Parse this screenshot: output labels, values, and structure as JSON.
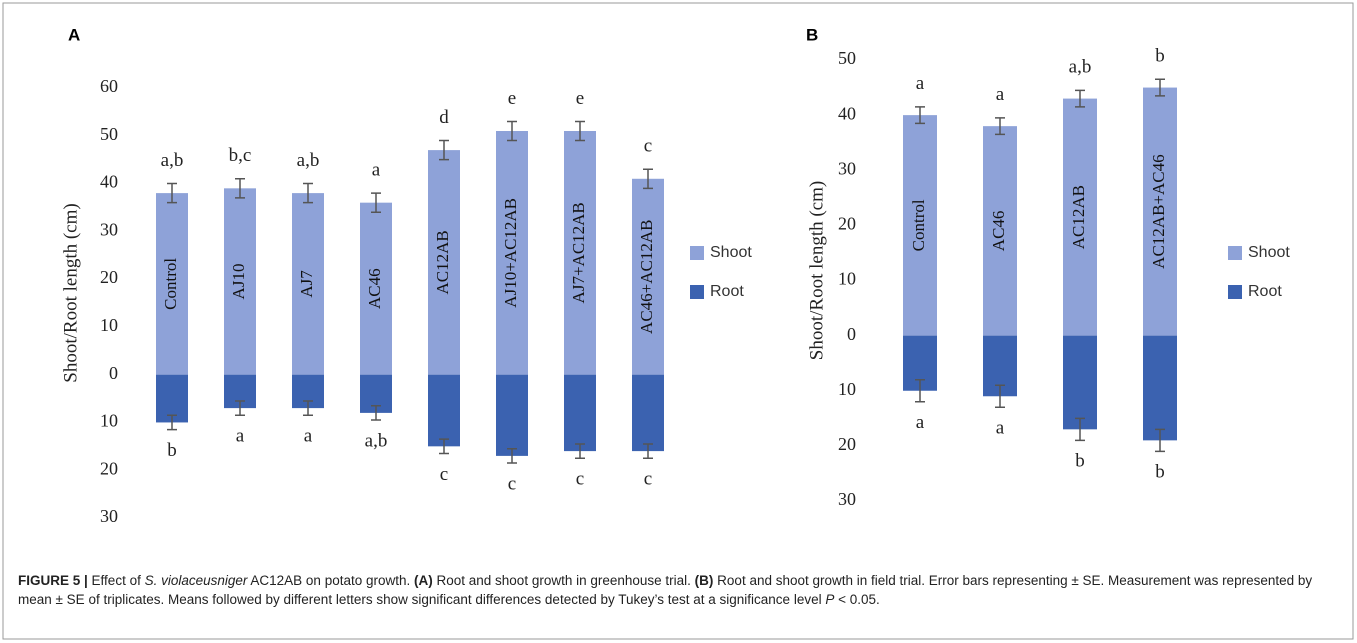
{
  "chart_data": [
    {
      "type": "bar",
      "stacked": true,
      "panel_label": "A",
      "ylabel": "Shoot/Root length (cm)",
      "categories": [
        "Control",
        "AJ10",
        "AJ7",
        "AC46",
        "AC12AB",
        "AJ10+AC12AB",
        "AJ7+AC12AB",
        "AC46+AC12AB"
      ],
      "series": [
        {
          "name": "Shoot",
          "color": "#8ea2d8",
          "values": [
            38,
            39,
            38,
            36,
            47,
            51,
            51,
            41
          ],
          "errors": [
            2,
            2,
            2,
            2,
            2,
            2,
            2,
            2
          ],
          "letters": [
            "a,b",
            "b,c",
            "a,b",
            "a",
            "d",
            "e",
            "e",
            "c"
          ]
        },
        {
          "name": "Root",
          "color": "#3b62b0",
          "values": [
            -10,
            -7,
            -7,
            -8,
            -15,
            -17,
            -16,
            -16
          ],
          "errors": [
            1.5,
            1.5,
            1.5,
            1.5,
            1.5,
            1.5,
            1.5,
            1.5
          ],
          "letters": [
            "b",
            "a",
            "a",
            "a,b",
            "c",
            "c",
            "c",
            "c"
          ]
        }
      ],
      "ylim": [
        -30,
        60
      ],
      "yticks": [
        {
          "value": -30,
          "label": "30"
        },
        {
          "value": -20,
          "label": "20"
        },
        {
          "value": -10,
          "label": "10"
        },
        0,
        10,
        20,
        30,
        40,
        50,
        60
      ]
    },
    {
      "type": "bar",
      "stacked": true,
      "panel_label": "B",
      "ylabel": "Shoot/Root length (cm)",
      "categories": [
        "Control",
        "AC46",
        "AC12AB",
        "AC12AB+AC46"
      ],
      "series": [
        {
          "name": "Shoot",
          "color": "#8ea2d8",
          "values": [
            40,
            38,
            43,
            45
          ],
          "errors": [
            1.5,
            1.5,
            1.5,
            1.5
          ],
          "letters": [
            "a",
            "a",
            "a,b",
            "b"
          ]
        },
        {
          "name": "Root",
          "color": "#3b62b0",
          "values": [
            -10,
            -11,
            -17,
            -19
          ],
          "errors": [
            2,
            2,
            2,
            2
          ],
          "letters": [
            "a",
            "a",
            "b",
            "b"
          ]
        }
      ],
      "ylim": [
        -30,
        50
      ],
      "yticks": [
        {
          "value": -30,
          "label": "30"
        },
        {
          "value": -20,
          "label": "20"
        },
        {
          "value": -10,
          "label": "10"
        },
        0,
        10,
        20,
        30,
        40,
        50
      ]
    }
  ],
  "caption": [
    "FIGURE 5 | ",
    "Effect of ",
    "S. violaceusniger",
    " AC12AB on potato growth. ",
    "(A)",
    " Root and shoot growth in greenhouse trial. ",
    "(B)",
    " Root and shoot growth in field trial. Error bars representing ± SE. Measurement was represented by mean ± SE of triplicates. Means followed by different letters show significant differences detected by Tukey’s test at a significance level ",
    "P",
    " < 0.05."
  ]
}
